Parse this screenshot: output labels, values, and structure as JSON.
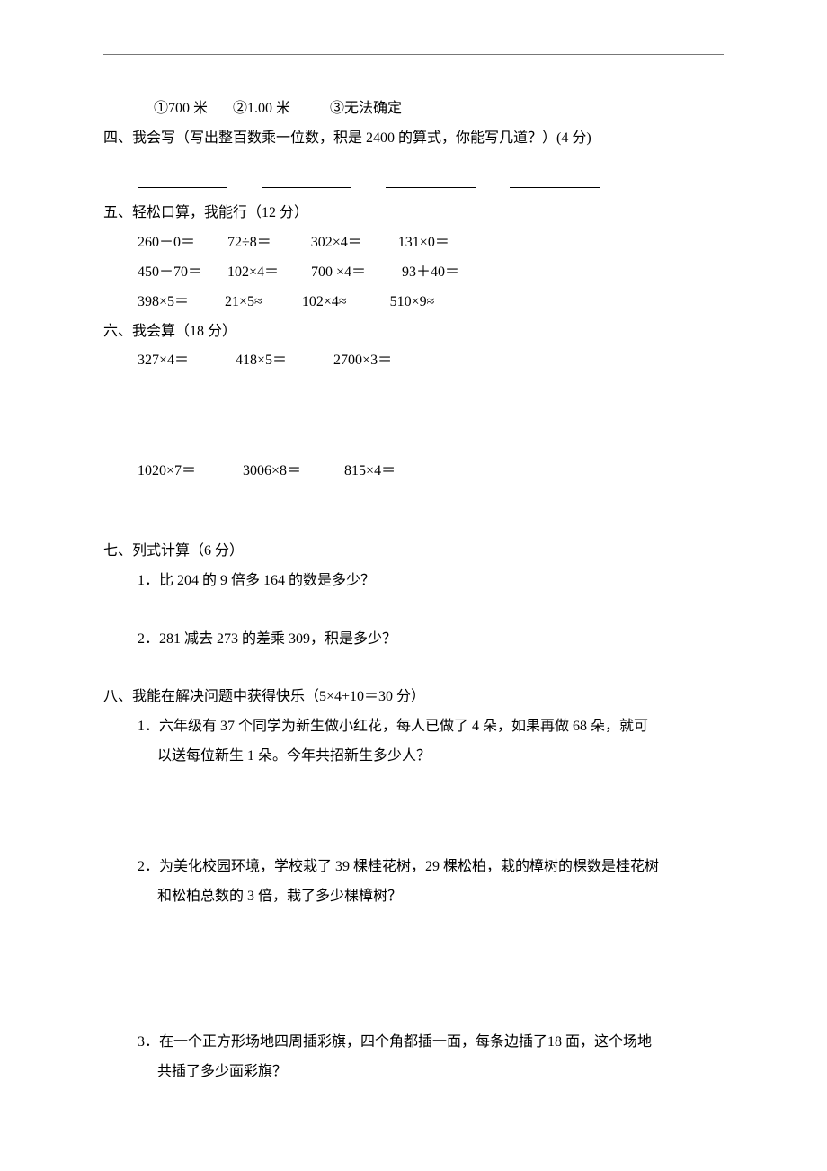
{
  "q_options": "①700 米       ②1.00 米           ③无法确定",
  "s4_title": "四、我会写（写出整百数乘一位数，积是 2400 的算式，你能写几道？）(4 分)",
  "s5_title": "五、轻松口算，我能行（12 分）",
  "s5_r1": "260－0＝         72÷8＝           302×4＝          131×0＝",
  "s5_r2": "450－70＝       102×4＝         700 ×4＝          93＋40＝",
  "s5_r3": "398×5＝          21×5≈           102×4≈            510×9≈",
  "s6_title": "六、我会算（18 分）",
  "s6_r1": "327×4＝             418×5＝             2700×3＝",
  "s6_r2": "1020×7＝             3006×8＝            815×4＝",
  "s7_title": "七、列式计算（6 分）",
  "s7_q1": "1．比 204 的 9 倍多 164 的数是多少？",
  "s7_q2": "2．281 减去 273 的差乘 309，积是多少？",
  "s8_title": "八、我能在解决问题中获得快乐（5×4+10＝30 分）",
  "s8_q1a": "1．六年级有 37 个同学为新生做小红花，每人已做了 4 朵，如果再做 68 朵，就可",
  "s8_q1b": "以送每位新生 1 朵。今年共招新生多少人？",
  "s8_q2a": "2．为美化校园环境，学校栽了 39 棵桂花树，29 棵松柏，栽的樟树的棵数是桂花树",
  "s8_q2b": "和松柏总数的 3 倍，栽了多少棵樟树？",
  "s8_q3a": "3．在一个正方形场地四周插彩旗，四个角都插一面，每条边插了18 面，这个场地",
  "s8_q3b": "共插了多少面彩旗？"
}
